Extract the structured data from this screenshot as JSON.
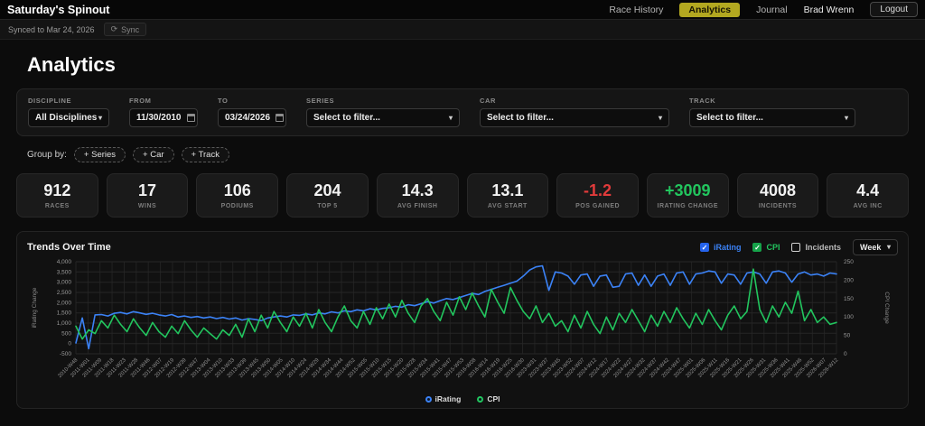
{
  "header": {
    "app_title": "Saturday's Spinout",
    "nav": [
      {
        "label": "Race History",
        "active": false
      },
      {
        "label": "Analytics",
        "active": true
      },
      {
        "label": "Journal",
        "active": false
      }
    ],
    "user": "Brad Wrenn",
    "logout_label": "Logout",
    "active_tab_bg": "#b3a820"
  },
  "sync_bar": {
    "synced_text": "Synced to Mar 24, 2026",
    "sync_icon": "⟳",
    "sync_label": "Sync"
  },
  "page": {
    "title": "Analytics"
  },
  "filters": {
    "discipline": {
      "label": "DISCIPLINE",
      "value": "All Disciplines"
    },
    "from": {
      "label": "FROM",
      "value": "11/30/2010"
    },
    "to": {
      "label": "TO",
      "value": "03/24/2026"
    },
    "series": {
      "label": "SERIES",
      "placeholder": "Select to filter..."
    },
    "car": {
      "label": "CAR",
      "placeholder": "Select to filter..."
    },
    "track": {
      "label": "TRACK",
      "placeholder": "Select to filter..."
    }
  },
  "group_by": {
    "label": "Group by:",
    "buttons": [
      "+ Series",
      "+ Car",
      "+ Track"
    ]
  },
  "stats": [
    {
      "value": "912",
      "label": "RACES",
      "color": "#f2f2f2"
    },
    {
      "value": "17",
      "label": "WINS",
      "color": "#f2f2f2"
    },
    {
      "value": "106",
      "label": "PODIUMS",
      "color": "#f2f2f2"
    },
    {
      "value": "204",
      "label": "TOP 5",
      "color": "#f2f2f2"
    },
    {
      "value": "14.3",
      "label": "AVG FINISH",
      "color": "#f2f2f2"
    },
    {
      "value": "13.1",
      "label": "AVG START",
      "color": "#f2f2f2"
    },
    {
      "value": "-1.2",
      "label": "POS GAINED",
      "color": "#e23b3b"
    },
    {
      "value": "+3009",
      "label": "IRATING CHANGE",
      "color": "#22c55e"
    },
    {
      "value": "4008",
      "label": "INCIDENTS",
      "color": "#f2f2f2"
    },
    {
      "value": "4.4",
      "label": "AVG INC",
      "color": "#f2f2f2"
    }
  ],
  "trends": {
    "title": "Trends Over Time",
    "toggles": [
      {
        "label": "iRating",
        "checked": true,
        "color": "#3b82f6",
        "box_color": "#2563eb"
      },
      {
        "label": "CPI",
        "checked": true,
        "color": "#22c55e",
        "box_color": "#16a34a"
      },
      {
        "label": "Incidents",
        "checked": false,
        "color": "#b8b8b8",
        "box_color": "transparent"
      }
    ],
    "interval_value": "Week"
  },
  "chart_data": {
    "type": "line",
    "title": "Trends Over Time",
    "grid": true,
    "y_left": {
      "label": "iRating Change",
      "min": -500,
      "max": 4000,
      "ticks": [
        "4,000",
        "3,500",
        "3,000",
        "2,500",
        "2,000",
        "1,500",
        "1,000",
        "500",
        "0",
        "-500"
      ]
    },
    "y_right": {
      "label": "CPI Change",
      "min": 0,
      "max": 250,
      "ticks": [
        "250",
        "200",
        "150",
        "100",
        "50",
        "0"
      ]
    },
    "x_tick_labels": [
      "2010-W48",
      "2011-W01",
      "2011-W09",
      "2011-W18",
      "2011-W23",
      "2011-W28",
      "2011-W46",
      "2012-W07",
      "2012-W19",
      "2012-W39",
      "2012-W47",
      "2013-W04",
      "2013-W10",
      "2013-W33",
      "2013-W39",
      "2013-W45",
      "2013-W50",
      "2014-W05",
      "2014-W10",
      "2014-W24",
      "2014-W29",
      "2014-W34",
      "2014-W44",
      "2014-W52",
      "2015-W05",
      "2015-W10",
      "2015-W15",
      "2015-W20",
      "2015-W28",
      "2015-W34",
      "2015-W41",
      "2015-W47",
      "2015-W53",
      "2016-W08",
      "2016-W14",
      "2016-W19",
      "2016-W25",
      "2016-W30",
      "2023-W31",
      "2023-W37",
      "2023-W45",
      "2023-W52",
      "2024-W07",
      "2024-W12",
      "2024-W17",
      "2024-W22",
      "2024-W27",
      "2024-W32",
      "2024-W37",
      "2024-W42",
      "2024-W47",
      "2025-W01",
      "2025-W06",
      "2025-W11",
      "2025-W16",
      "2025-W21",
      "2025-W26",
      "2025-W31",
      "2025-W36",
      "2025-W41",
      "2025-W46",
      "2025-W52",
      "2026-W07",
      "2026-W12"
    ],
    "legend": [
      {
        "name": "iRating",
        "color": "#3b82f6"
      },
      {
        "name": "CPI",
        "color": "#22c55e"
      }
    ],
    "series": [
      {
        "name": "iRating",
        "axis": "left",
        "color": "#3b82f6",
        "values": [
          30,
          1250,
          -250,
          1400,
          1420,
          1350,
          1480,
          1520,
          1450,
          1560,
          1500,
          1430,
          1480,
          1400,
          1350,
          1420,
          1300,
          1350,
          1280,
          1320,
          1250,
          1300,
          1220,
          1280,
          1200,
          1250,
          1150,
          1220,
          1180,
          1120,
          1250,
          1300,
          1350,
          1300,
          1400,
          1380,
          1450,
          1400,
          1500,
          1450,
          1550,
          1500,
          1600,
          1560,
          1650,
          1600,
          1700,
          1650,
          1720,
          1750,
          1820,
          1780,
          1900,
          1850,
          1950,
          2050,
          1980,
          2100,
          2200,
          2150,
          2250,
          2350,
          2450,
          2400,
          2550,
          2650,
          2750,
          2850,
          2950,
          3050,
          3300,
          3600,
          3750,
          3800,
          2600,
          3500,
          3450,
          3300,
          2900,
          3350,
          3400,
          2800,
          3300,
          3350,
          2750,
          2800,
          3400,
          3450,
          2850,
          3350,
          2800,
          3300,
          3400,
          2850,
          3450,
          3500,
          2900,
          3400,
          3450,
          3550,
          3500,
          2950,
          3400,
          3350,
          2900,
          3450,
          3500,
          3400,
          2950,
          3500,
          3550,
          3450,
          3000,
          3400,
          3500,
          3350,
          3400,
          3300,
          3450,
          3400
        ]
      },
      {
        "name": "CPI",
        "axis": "right",
        "color": "#22c55e",
        "values": [
          75,
          40,
          65,
          55,
          90,
          70,
          105,
          80,
          60,
          95,
          70,
          50,
          85,
          60,
          45,
          75,
          55,
          90,
          65,
          45,
          70,
          55,
          40,
          65,
          50,
          80,
          45,
          95,
          60,
          105,
          70,
          115,
          85,
          60,
          100,
          75,
          110,
          70,
          120,
          85,
          60,
          100,
          130,
          90,
          70,
          115,
          80,
          125,
          95,
          135,
          100,
          145,
          110,
          85,
          130,
          150,
          115,
          90,
          140,
          105,
          155,
          120,
          165,
          130,
          100,
          175,
          140,
          110,
          180,
          145,
          115,
          95,
          130,
          85,
          110,
          75,
          90,
          60,
          105,
          70,
          115,
          80,
          55,
          100,
          65,
          110,
          85,
          120,
          90,
          60,
          105,
          75,
          115,
          85,
          125,
          95,
          70,
          110,
          80,
          120,
          90,
          65,
          105,
          130,
          95,
          115,
          230,
          120,
          85,
          130,
          100,
          140,
          110,
          170,
          90,
          120,
          85,
          100,
          80,
          85
        ]
      }
    ]
  }
}
